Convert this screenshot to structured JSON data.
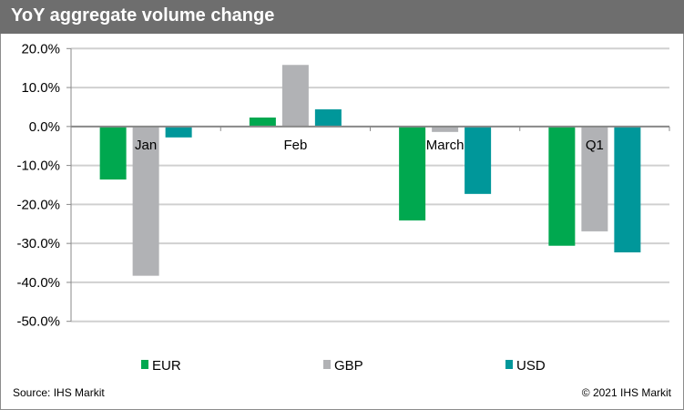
{
  "header": {
    "title": "YoY aggregate volume change"
  },
  "footer": {
    "source": "Source: IHS Markit",
    "copyright": "© 2021 IHS Markit"
  },
  "chart_data": {
    "type": "bar",
    "title": "YoY aggregate volume change",
    "categories": [
      "Jan",
      "Feb",
      "March",
      "Q1"
    ],
    "series": [
      {
        "name": "EUR",
        "color": "#00a84f",
        "values": [
          -13.6,
          2.3,
          -24.1,
          -30.6
        ]
      },
      {
        "name": "GBP",
        "color": "#b1b2b5",
        "values": [
          -38.3,
          15.8,
          -1.4,
          -26.9
        ]
      },
      {
        "name": "USD",
        "color": "#00979a",
        "values": [
          -2.8,
          4.4,
          -17.3,
          -32.3
        ]
      }
    ],
    "yticks": [
      "20.0%",
      "10.0%",
      "0.0%",
      "-10.0%",
      "-20.0%",
      "-30.0%",
      "-40.0%",
      "-50.0%"
    ],
    "ylim": [
      -50,
      20
    ],
    "grid": true,
    "legend": "bottom",
    "xlabel": "",
    "ylabel": ""
  }
}
